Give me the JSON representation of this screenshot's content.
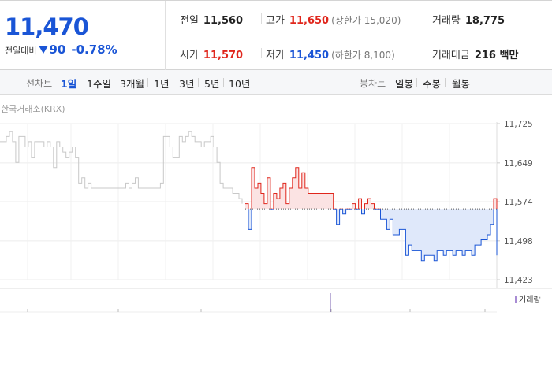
{
  "summary": {
    "current_price": "11,470",
    "change_label": "전일대비",
    "change_icon": "down-triangle-icon",
    "change_amount": "90",
    "change_percent": "-0.78%",
    "colors": {
      "up": "#e0261c",
      "down": "#1a55d6"
    }
  },
  "stats": {
    "prev_close_label": "전일",
    "prev_close": "11,560",
    "high_label": "고가",
    "high": "11,650",
    "upper_limit": "(상한가 15,020)",
    "volume_label": "거래량",
    "volume": "18,775",
    "open_label": "시가",
    "open": "11,570",
    "low_label": "저가",
    "low": "11,450",
    "lower_limit": "(하한가 8,100)",
    "value_label": "거래대금",
    "value": "216 백만"
  },
  "periods": {
    "line_title": "선차트",
    "line_tabs": [
      "1일",
      "1주일",
      "3개월",
      "1년",
      "3년",
      "5년",
      "10년"
    ],
    "active": "1일",
    "candle_title": "봉차트",
    "candle_tabs": [
      "일봉",
      "주봉",
      "월봉"
    ]
  },
  "source": "한국거래소(KRX)",
  "volume_legend": "거래량",
  "chart_data": {
    "type": "line",
    "title": "",
    "xlabel": "",
    "ylabel": "",
    "y_ticks": [
      "11,725",
      "11,649",
      "11,574",
      "11,498",
      "11,423"
    ],
    "ylim": [
      11423,
      11725
    ],
    "reference_line": 11560,
    "grid": true,
    "colors": {
      "previous": "#c8c8c8",
      "above_reference": "#e0261c",
      "below_reference": "#1a55d6"
    },
    "previous_session": {
      "x": [
        0,
        2,
        3,
        4,
        5,
        6,
        7,
        8,
        9,
        10,
        11,
        12,
        13,
        14,
        15,
        16,
        17,
        18,
        19,
        20,
        21,
        22,
        23,
        24,
        25,
        26,
        27,
        28,
        29,
        30,
        31,
        32,
        33,
        34,
        35,
        36,
        37,
        38,
        39,
        40,
        41,
        42,
        43,
        44,
        45,
        46,
        47,
        48,
        49,
        50,
        51,
        52,
        53,
        54,
        55,
        56,
        57,
        58,
        59,
        60,
        61,
        62,
        63,
        64,
        65,
        66,
        67,
        68,
        69,
        70,
        71,
        72,
        73,
        74,
        75,
        76,
        77
      ],
      "y": [
        11690,
        11700,
        11710,
        11690,
        11650,
        11700,
        11700,
        11680,
        11690,
        11660,
        11690,
        11690,
        11690,
        11680,
        11690,
        11680,
        11640,
        11690,
        11680,
        11670,
        11660,
        11670,
        11680,
        11660,
        11610,
        11620,
        11600,
        11610,
        11600,
        11600,
        11600,
        11600,
        11600,
        11600,
        11600,
        11600,
        11600,
        11600,
        11600,
        11610,
        11600,
        11610,
        11620,
        11600,
        11600,
        11600,
        11600,
        11600,
        11600,
        11600,
        11610,
        11700,
        11700,
        11680,
        11660,
        11660,
        11700,
        11690,
        11700,
        11710,
        11700,
        11690,
        11690,
        11680,
        11690,
        11690,
        11700,
        11680,
        11650,
        11610,
        11600,
        11600,
        11600,
        11590,
        11590,
        11580,
        11570
      ]
    },
    "today_session": {
      "x": [
        78,
        79,
        80,
        81,
        82,
        83,
        84,
        85,
        86,
        87,
        88,
        89,
        90,
        91,
        92,
        93,
        94,
        95,
        96,
        97,
        98,
        99,
        100,
        101,
        102,
        103,
        104,
        105,
        106,
        107,
        108,
        109,
        110,
        111,
        112,
        113,
        114,
        115,
        116,
        117,
        118,
        119,
        120,
        121,
        122,
        123,
        124,
        125,
        126,
        127,
        128,
        129,
        130,
        131,
        132,
        133,
        134,
        135,
        136,
        137,
        138,
        139,
        140,
        141,
        142,
        143,
        144,
        145,
        146,
        147,
        148,
        149,
        150,
        151,
        152,
        153,
        154,
        155,
        156,
        157,
        158
      ],
      "y": [
        11570,
        11520,
        11640,
        11600,
        11610,
        11590,
        11570,
        11620,
        11560,
        11590,
        11580,
        11600,
        11610,
        11570,
        11600,
        11620,
        11640,
        11600,
        11630,
        11600,
        11590,
        11590,
        11590,
        11590,
        11590,
        11590,
        11590,
        11590,
        11560,
        11530,
        11560,
        11550,
        11560,
        11560,
        11570,
        11560,
        11580,
        11550,
        11570,
        11580,
        11570,
        11560,
        11560,
        11540,
        11540,
        11520,
        11540,
        11510,
        11510,
        11520,
        11520,
        11470,
        11490,
        11480,
        11480,
        11480,
        11460,
        11470,
        11470,
        11470,
        11460,
        11480,
        11480,
        11470,
        11480,
        11480,
        11470,
        11480,
        11480,
        11470,
        11480,
        11480,
        11470,
        11490,
        11490,
        11500,
        11500,
        11510,
        11530,
        11580,
        11470
      ]
    }
  }
}
